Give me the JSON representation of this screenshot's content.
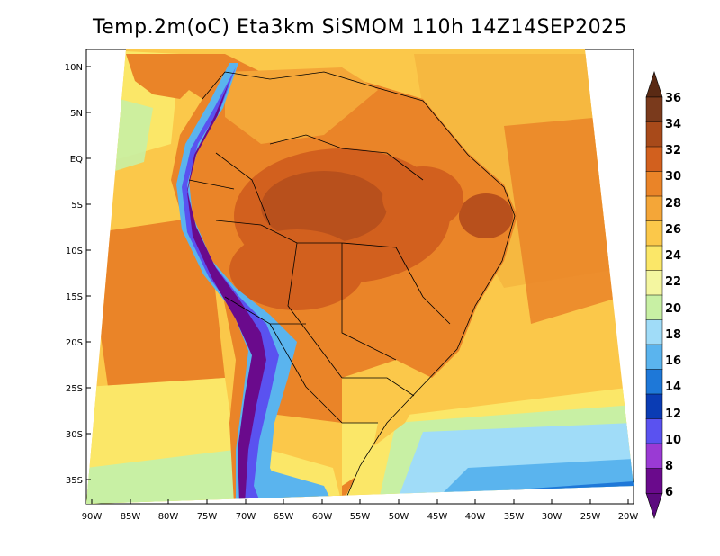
{
  "title": "Temp.2m(oC) Eta3km SiSMOM 110h 14Z14SEP2025",
  "axes": {
    "lat_labels": [
      "10N",
      "5N",
      "EQ",
      "5S",
      "10S",
      "15S",
      "20S",
      "25S",
      "30S",
      "35S"
    ],
    "lon_labels": [
      "90W",
      "85W",
      "80W",
      "75W",
      "70W",
      "65W",
      "60W",
      "55W",
      "50W",
      "45W",
      "40W",
      "35W",
      "30W",
      "25W",
      "20W"
    ]
  },
  "colorbar": {
    "labels": [
      "36",
      "34",
      "32",
      "30",
      "28",
      "26",
      "24",
      "22",
      "20",
      "18",
      "16",
      "14",
      "12",
      "10",
      "8",
      "6"
    ],
    "top_arrow_color": "#5a2a14",
    "bottom_arrow_color": "#5c0a7e",
    "colors": [
      "#7a3a1c",
      "#a84a1a",
      "#d2601e",
      "#ea8428",
      "#f4a638",
      "#fbc84a",
      "#fbe768",
      "#f4f6a0",
      "#c8f0a4",
      "#a0dcf8",
      "#5ab4ee",
      "#1e78d8",
      "#0a3cb4",
      "#5a52f0",
      "#9a3ad4",
      "#6a0a8c"
    ]
  }
}
